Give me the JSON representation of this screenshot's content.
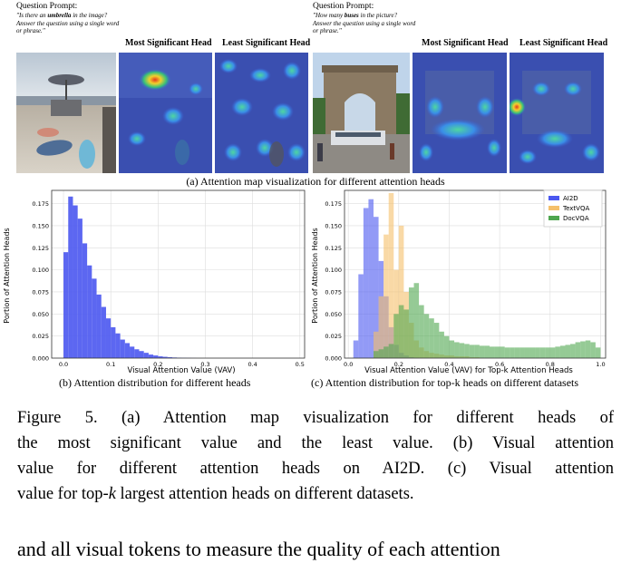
{
  "panel_a": {
    "left": {
      "prompt_title": "Question Prompt:",
      "prompt_text_before": "\"Is there an ",
      "prompt_bold": "umbrella",
      "prompt_text_after": " in the image? Answer the question using a single word or phrase.\"",
      "most_label": "Most Significant Head",
      "least_label": "Least Significant Head"
    },
    "right": {
      "prompt_title": "Question Prompt:",
      "prompt_text_before": "\"How many ",
      "prompt_bold": "buses",
      "prompt_text_after": " in the picture? Answer the question using a single word or phrase.\"",
      "most_label": "Most Significant Head",
      "least_label": "Least Significant Head"
    },
    "caption": "(a) Attention map visualization for different attention heads"
  },
  "chart_data": [
    {
      "type": "bar",
      "xlabel": "Visual Attention Value (VAV)",
      "ylabel": "Portion of Attention Heads",
      "xlim": [
        -0.025,
        0.51
      ],
      "ylim": [
        0,
        0.19
      ],
      "xticks": [
        0.0,
        0.1,
        0.2,
        0.3,
        0.4,
        0.5
      ],
      "yticks": [
        0.0,
        0.025,
        0.05,
        0.075,
        0.1,
        0.125,
        0.15,
        0.175
      ],
      "grid": true,
      "bin_start": 0.0,
      "bin_width": 0.01,
      "series": [
        {
          "color": "#4a57f0",
          "values": [
            0.12,
            0.183,
            0.173,
            0.158,
            0.13,
            0.105,
            0.09,
            0.072,
            0.058,
            0.045,
            0.035,
            0.028,
            0.021,
            0.017,
            0.013,
            0.01,
            0.008,
            0.006,
            0.004,
            0.003,
            0.002,
            0.0015,
            0.001,
            0.0007,
            0.0005,
            0.0003,
            0.0002,
            0.0001
          ]
        }
      ],
      "caption": "(b) Attention distribution for different heads"
    },
    {
      "type": "bar",
      "xlabel": "Visual Attention Value (VAV) for Top-k Attention Heads",
      "ylabel": "Portion of Attention Heads",
      "xlim": [
        -0.015,
        1.02
      ],
      "ylim": [
        0,
        0.19
      ],
      "xticks": [
        0.0,
        0.2,
        0.4,
        0.6,
        0.8,
        1.0
      ],
      "yticks": [
        0.0,
        0.025,
        0.05,
        0.075,
        0.1,
        0.125,
        0.15,
        0.175
      ],
      "grid": true,
      "legend": "top-right",
      "bin_width": 0.02,
      "series": [
        {
          "name": "AI2D",
          "color": "#4a57f0",
          "bin_start": 0.02,
          "values": [
            0.02,
            0.095,
            0.17,
            0.18,
            0.16,
            0.11,
            0.07,
            0.035,
            0.015,
            0.006,
            0.003,
            0.001
          ]
        },
        {
          "name": "TextVQA",
          "color": "#f5c06b",
          "bin_start": 0.1,
          "values": [
            0.03,
            0.07,
            0.14,
            0.187,
            0.1,
            0.15,
            0.075,
            0.04,
            0.02,
            0.012,
            0.008,
            0.006,
            0.005,
            0.004,
            0.003,
            0.003,
            0.002,
            0.002,
            0.002,
            0.001,
            0.001
          ]
        },
        {
          "name": "DocVQA",
          "color": "#4fa64f",
          "bin_start": 0.1,
          "values": [
            0.008,
            0.01,
            0.013,
            0.016,
            0.05,
            0.06,
            0.055,
            0.08,
            0.085,
            0.06,
            0.05,
            0.045,
            0.04,
            0.03,
            0.025,
            0.02,
            0.018,
            0.017,
            0.016,
            0.015,
            0.015,
            0.014,
            0.014,
            0.013,
            0.013,
            0.013,
            0.012,
            0.012,
            0.012,
            0.012,
            0.012,
            0.012,
            0.012,
            0.012,
            0.012,
            0.012,
            0.013,
            0.014,
            0.015,
            0.016,
            0.018,
            0.019,
            0.02,
            0.018,
            0.012
          ]
        }
      ],
      "caption": "(c) Attention distribution for top-k heads on different datasets"
    }
  ],
  "figure_caption": {
    "line1": "Figure 5.  (a) Attention map visualization for different heads of",
    "line2": "the most significant value and the least value. (b) Visual attention",
    "line3": "value for different attention heads on AI2D. (c) Visual attention",
    "line4_before": "value for top-",
    "line4_k": "k",
    "line4_after": " largest attention heads on different datasets."
  },
  "body_text": "and all visual tokens to measure the quality of each attention"
}
